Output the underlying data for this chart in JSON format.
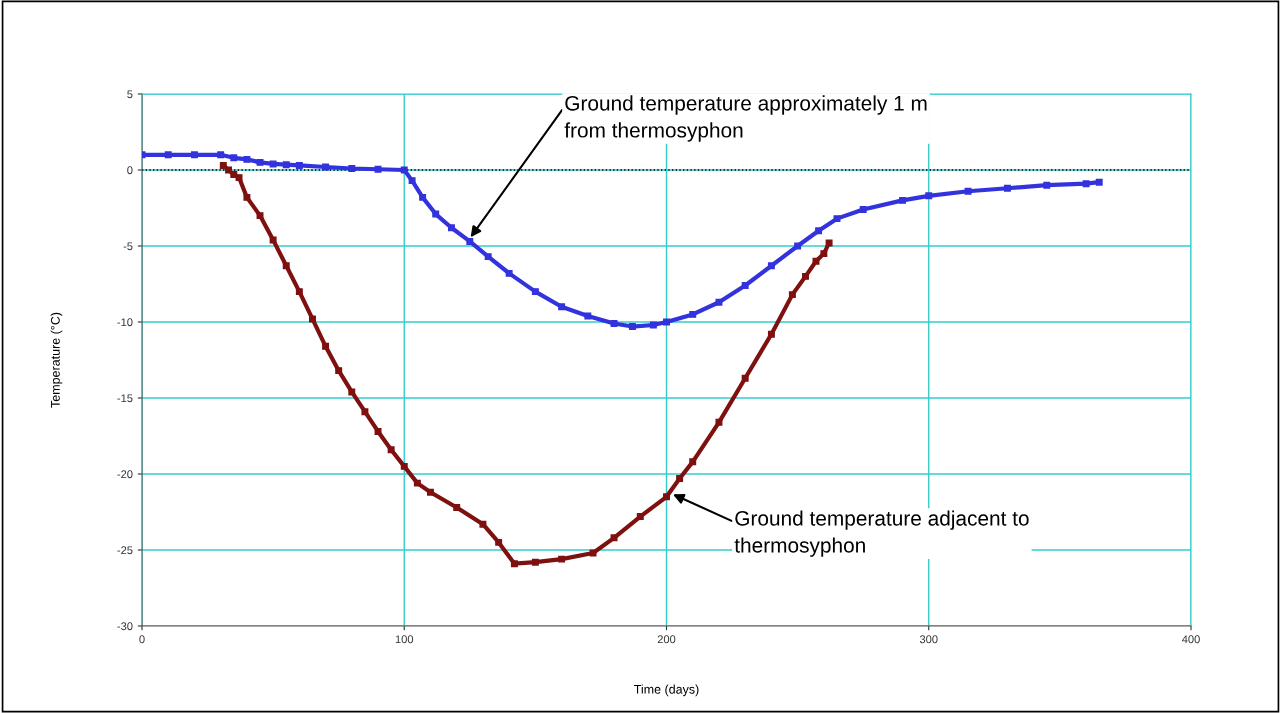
{
  "chart_data": {
    "type": "line",
    "xlabel": "Time (days)",
    "ylabel": "Temperature (°C)",
    "xlim": [
      0,
      400
    ],
    "xticks": [
      0,
      100,
      200,
      300,
      400
    ],
    "ylim": [
      -30,
      5
    ],
    "yticks": [
      -30,
      -25,
      -20,
      -15,
      -10,
      -5,
      0,
      5
    ],
    "grid": true,
    "marker": "square",
    "ref_lines": [
      {
        "axis": "y",
        "value": 0,
        "color": "#000000",
        "line_style": "dotted"
      }
    ],
    "series": [
      {
        "color": "#3333dd",
        "x": [
          0,
          10,
          20,
          30,
          35,
          40,
          45,
          50,
          55,
          60,
          70,
          80,
          90,
          100,
          103,
          107,
          112,
          118,
          125,
          132,
          140,
          150,
          160,
          170,
          180,
          187,
          195,
          200,
          210,
          220,
          230,
          240,
          250,
          258,
          265,
          275,
          290,
          300,
          315,
          330,
          345,
          360,
          365
        ],
        "values": [
          1.0,
          1.0,
          1.0,
          1.0,
          0.8,
          0.7,
          0.5,
          0.4,
          0.35,
          0.3,
          0.2,
          0.1,
          0.05,
          0.0,
          -0.7,
          -1.8,
          -2.9,
          -3.8,
          -4.7,
          -5.7,
          -6.8,
          -8.0,
          -9.0,
          -9.6,
          -10.1,
          -10.3,
          -10.2,
          -10.0,
          -9.5,
          -8.7,
          -7.6,
          -6.3,
          -5.0,
          -4.0,
          -3.2,
          -2.6,
          -2.0,
          -1.7,
          -1.4,
          -1.2,
          -1.0,
          -0.9,
          -0.8
        ]
      },
      {
        "color": "#7f1010",
        "x": [
          31,
          33,
          35,
          37,
          40,
          45,
          50,
          55,
          60,
          65,
          70,
          75,
          80,
          85,
          90,
          95,
          100,
          105,
          110,
          120,
          130,
          136,
          142,
          150,
          160,
          172,
          180,
          190,
          200,
          205,
          210,
          220,
          230,
          240,
          248,
          253,
          257,
          260,
          262
        ],
        "values": [
          0.3,
          0.0,
          -0.3,
          -0.5,
          -1.8,
          -3.0,
          -4.6,
          -6.3,
          -8.0,
          -9.8,
          -11.6,
          -13.2,
          -14.6,
          -15.9,
          -17.2,
          -18.4,
          -19.5,
          -20.6,
          -21.2,
          -22.2,
          -23.3,
          -24.5,
          -25.9,
          -25.8,
          -25.6,
          -25.2,
          -24.2,
          -22.8,
          -21.5,
          -20.3,
          -19.2,
          -16.6,
          -13.7,
          -10.8,
          -8.2,
          -7.0,
          -6.0,
          -5.5,
          -4.8
        ]
      }
    ],
    "annotations": [
      {
        "text": "Ground temperature approximately 1 m\nfrom thermosyphon",
        "x": 125,
        "y": -4.5
      },
      {
        "text": "Ground temperature adjacent to\nthermosyphon",
        "x": 202,
        "y": -21.3
      }
    ]
  }
}
